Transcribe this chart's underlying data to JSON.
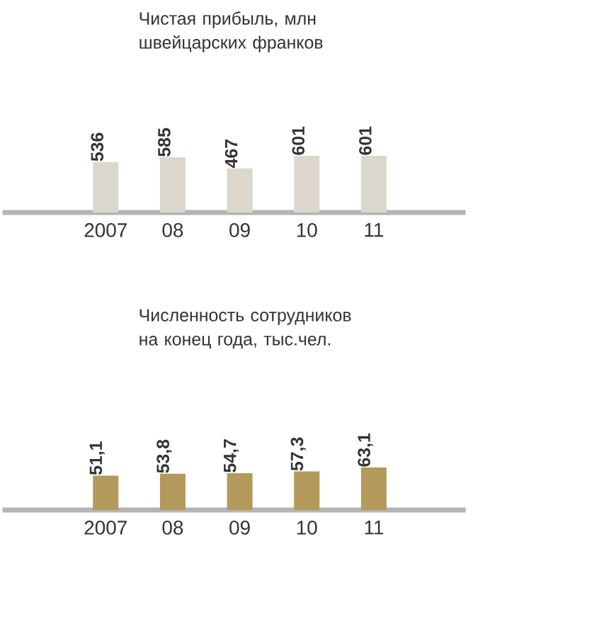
{
  "chart_data": [
    {
      "type": "bar",
      "title": "Чистая прибыль, млн швейцарских франков",
      "categories": [
        "2007",
        "08",
        "09",
        "10",
        "11"
      ],
      "values": [
        536,
        585,
        467,
        601,
        601
      ],
      "value_labels": [
        "536",
        "585",
        "467",
        "601",
        "601"
      ],
      "color": "#dcd7cd"
    },
    {
      "type": "bar",
      "title": "Численность сотрудников на конец года, тыс.чел.",
      "categories": [
        "2007",
        "08",
        "09",
        "10",
        "11"
      ],
      "values": [
        51.1,
        53.8,
        54.7,
        57.3,
        63.1
      ],
      "value_labels": [
        "51,1",
        "53,8",
        "54,7",
        "57,3",
        "63,1"
      ],
      "color": "#b39a5c"
    }
  ]
}
